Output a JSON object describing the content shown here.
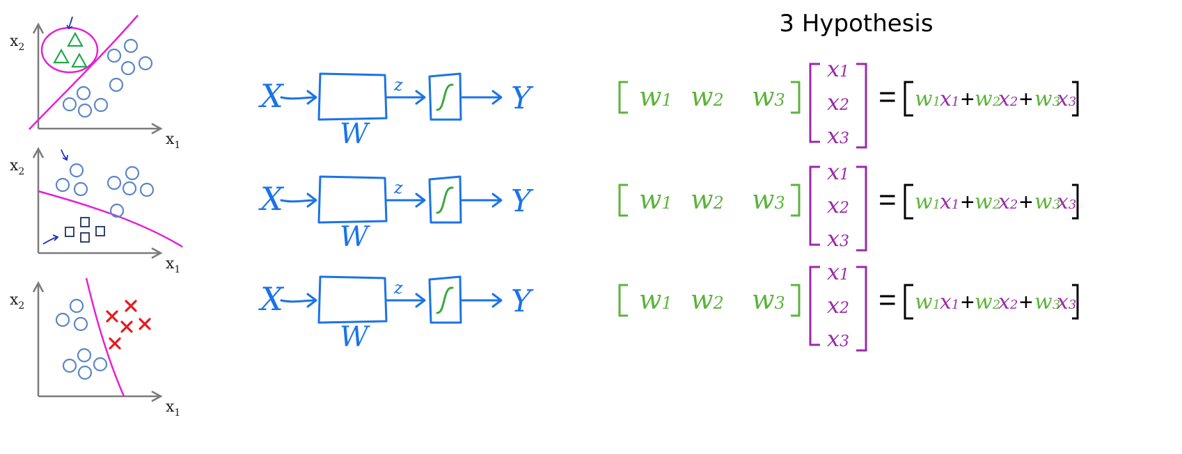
{
  "title": "3 Hypothesis",
  "colors": {
    "axis": "#7a7a7a",
    "boundary": "#e61ed7",
    "circle": "#5b86c6",
    "triangle": "#1fa84a",
    "square": "#2f4466",
    "cross": "#e8191e",
    "arrow_mark": "#1d2fb8",
    "diagram": "#1a73e8",
    "sigmoid": "#3aa83a",
    "weight_green": "#5cb33b",
    "x_purple": "#9a2aa8",
    "black": "#000000"
  },
  "plots": [
    {
      "x_label": "x",
      "x_sub": "1",
      "y_label": "x",
      "y_sub": "2",
      "highlight": "triangle"
    },
    {
      "x_label": "x",
      "x_sub": "1",
      "y_label": "x",
      "y_sub": "2",
      "highlight": "square"
    },
    {
      "x_label": "x",
      "x_sub": "1",
      "y_label": "x",
      "y_sub": "2",
      "highlight": "cross"
    }
  ],
  "diagram": {
    "input": "X",
    "weight": "W",
    "z": "z",
    "output": "Y",
    "rows": 3
  },
  "equation": {
    "w": [
      "w",
      "w",
      "w"
    ],
    "w_sub": [
      "1",
      "2",
      "3"
    ],
    "x": [
      "x",
      "x",
      "x"
    ],
    "x_sub": [
      "1",
      "2",
      "3"
    ],
    "equals": "=",
    "plus": "+"
  }
}
